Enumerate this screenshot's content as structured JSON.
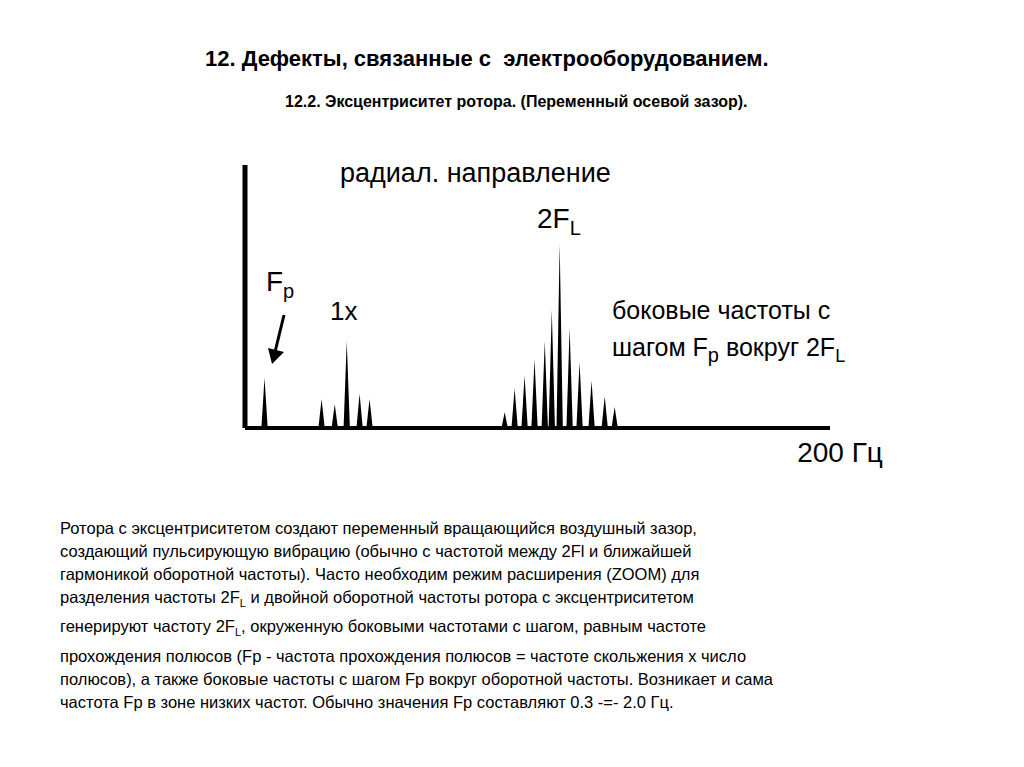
{
  "header": {
    "title": "12. Дефекты, связанные с  электрооборудованием.",
    "subtitle": "12.2. Эксцентриситет ротора. (Переменный осевой зазор)."
  },
  "chart_data": {
    "type": "bar",
    "title": "радиал. направление",
    "x": [
      6.8,
      26.3,
      30.8,
      34.9,
      39.3,
      42.7,
      88.9,
      92.3,
      95.7,
      99.1,
      102.6,
      105,
      107.7,
      111.1,
      114.5,
      118.6,
      123.1,
      126.5
    ],
    "values": [
      19,
      11,
      9,
      33,
      13,
      11,
      6,
      15,
      20,
      26,
      33,
      45,
      70,
      38,
      25,
      18,
      12,
      8
    ],
    "color": "#000000",
    "xlim": [
      0,
      200
    ],
    "xticks": [
      {
        "value": 200,
        "label": "200 Гц"
      }
    ],
    "ylim": [
      0,
      100
    ],
    "yticks": [],
    "tick_labels": "x",
    "annotations": [
      {
        "text": "F",
        "sub": "p"
      },
      {
        "text": "1x"
      },
      {
        "text": "2F",
        "sub": "L"
      },
      {
        "lines": [
          {
            "text": "боковые частоты с"
          },
          {
            "text": "шагом F",
            "sub": "p",
            "after": " вокруг 2F",
            "sub2": "L"
          }
        ]
      }
    ]
  },
  "caption": [
    [
      {
        "t": "Ротора с эксцентриситетом создают переменный вращающийся воздушный зазор,"
      }
    ],
    [
      {
        "t": "создающий пульсирующую вибрацию (обычно с частотой между 2Fl и ближайшей"
      }
    ],
    [
      {
        "t": "гармоникой оборотной частоты). Часто необходим режим расширения (ZOOM) для"
      }
    ],
    [
      {
        "t": "разделения частоты 2F"
      },
      {
        "sub": "L"
      },
      {
        "t": " и двойной оборотной частоты ротора с эксцентриситетом"
      }
    ],
    [
      {
        "t": "генерируют частоту 2F"
      },
      {
        "sub": "L"
      },
      {
        "t": ", окруженную боковыми частотами с шагом, равным частоте"
      }
    ],
    [
      {
        "t": "прохождения полюсов (Fp - частота прохождения полюсов = частоте скольжения х число"
      }
    ],
    [
      {
        "t": "полюсов), а также боковые частоты с шагом Fp вокруг оборотной частоты. Возникает и сама"
      }
    ],
    [
      {
        "t": "частота Fp в зоне низких частот. Обычно значения Fp составляют 0.3 -=- 2.0 Гц."
      }
    ]
  ]
}
